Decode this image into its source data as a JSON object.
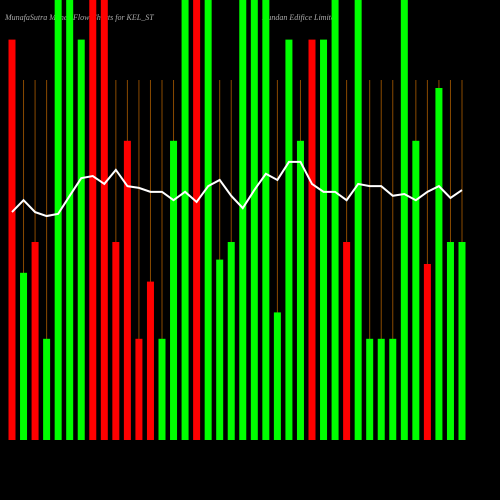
{
  "chart_data": {
    "type": "bar",
    "title": "MunafaSutra Money Flow Charts for KEL_ST",
    "subtitle": "Kundan Edifice Limited",
    "categories": [
      null,
      null,
      null,
      null,
      null,
      null,
      null,
      null,
      null,
      null,
      null,
      null,
      null,
      null,
      null,
      null,
      null,
      null,
      null,
      null,
      null,
      null,
      null,
      null,
      null,
      null,
      null,
      null,
      null,
      null,
      null,
      null,
      null,
      null,
      null,
      null,
      null,
      null,
      null,
      null
    ],
    "values": [
      91,
      38,
      45,
      23,
      100,
      100,
      91,
      100,
      100,
      45,
      68,
      23,
      36,
      23,
      68,
      100,
      100,
      100,
      41,
      45,
      100,
      100,
      100,
      29,
      91,
      68,
      91,
      91,
      100,
      45,
      100,
      23,
      23,
      23,
      100,
      68,
      40,
      80,
      45,
      45
    ],
    "colors": [
      "#ff0000",
      "#00ff00",
      "#ff0000",
      "#00ff00",
      "#00ff00",
      "#00ff00",
      "#00ff00",
      "#ff0000",
      "#ff0000",
      "#ff0000",
      "#ff0000",
      "#ff0000",
      "#ff0000",
      "#00ff00",
      "#00ff00",
      "#00ff00",
      "#ff0000",
      "#00ff00",
      "#00ff00",
      "#00ff00",
      "#00ff00",
      "#00ff00",
      "#00ff00",
      "#00ff00",
      "#00ff00",
      "#00ff00",
      "#ff0000",
      "#00ff00",
      "#00ff00",
      "#ff0000",
      "#00ff00",
      "#00ff00",
      "#00ff00",
      "#00ff00",
      "#00ff00",
      "#00ff00",
      "#ff0000",
      "#00ff00",
      "#00ff00",
      "#00ff00"
    ],
    "line": {
      "color": "#ffffff",
      "values": [
        51.8,
        54.5,
        51.8,
        50.9,
        51.4,
        55.5,
        59.5,
        60,
        58.2,
        61.4,
        57.7,
        57.3,
        56.4,
        56.4,
        54.5,
        56.4,
        54.1,
        57.7,
        59.1,
        55.5,
        52.7,
        56.8,
        60.5,
        59.1,
        63.2,
        63.2,
        58.2,
        56.4,
        56.4,
        54.5,
        58.2,
        57.7,
        57.7,
        55.5,
        55.9,
        54.5,
        56.4,
        57.7,
        55,
        56.8
      ]
    },
    "ylim": [
      0,
      100
    ]
  }
}
